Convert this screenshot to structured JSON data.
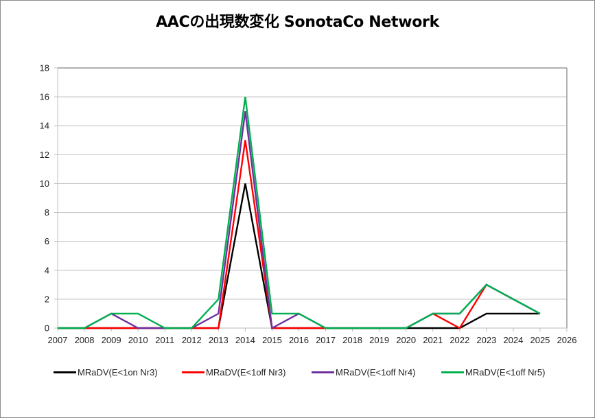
{
  "title": "AACの出現数変化 SonotaCo Network",
  "chart_data": {
    "type": "line",
    "title": "AACの出現数変化 SonotaCo Network",
    "xlabel": "",
    "ylabel": "",
    "x": [
      2007,
      2008,
      2009,
      2010,
      2011,
      2012,
      2013,
      2014,
      2015,
      2016,
      2017,
      2018,
      2019,
      2020,
      2021,
      2022,
      2023,
      2024,
      2025
    ],
    "x_ticks": [
      "2007",
      "2008",
      "2009",
      "2010",
      "2011",
      "2012",
      "2013",
      "2014",
      "2015",
      "2016",
      "2017",
      "2018",
      "2019",
      "2020",
      "2021",
      "2022",
      "2023",
      "2024",
      "2025",
      "2026"
    ],
    "y_ticks": [
      "0",
      "2",
      "4",
      "6",
      "8",
      "10",
      "12",
      "14",
      "16",
      "18"
    ],
    "xlim": [
      2007,
      2026
    ],
    "ylim": [
      0,
      18
    ],
    "grid": "horizontal",
    "legend_position": "bottom",
    "series": [
      {
        "name": "MRaDV(E<1on Nr3)",
        "color": "#000000",
        "values": [
          0,
          0,
          0,
          0,
          0,
          0,
          0,
          10,
          0,
          0,
          0,
          0,
          0,
          0,
          0,
          0,
          1,
          1,
          1
        ]
      },
      {
        "name": "MRaDV(E<1off Nr3)",
        "color": "#ff0000",
        "values": [
          0,
          0,
          0,
          0,
          0,
          0,
          0,
          13,
          0,
          0,
          0,
          0,
          0,
          0,
          1,
          0,
          3,
          2,
          1
        ]
      },
      {
        "name": "MRaDV(E<1off Nr4)",
        "color": "#7030a0",
        "values": [
          0,
          0,
          1,
          0,
          0,
          0,
          1,
          15,
          0,
          1,
          0,
          0,
          0,
          0,
          1,
          1,
          3,
          2,
          1
        ]
      },
      {
        "name": "MRaDV(E<1off Nr5)",
        "color": "#00b050",
        "values": [
          0,
          0,
          1,
          1,
          0,
          0,
          2,
          16,
          1,
          1,
          0,
          0,
          0,
          0,
          1,
          1,
          3,
          2,
          1
        ]
      }
    ]
  },
  "legend": [
    {
      "label": "MRaDV(E<1on Nr3)",
      "color": "#000000"
    },
    {
      "label": "MRaDV(E<1off Nr3)",
      "color": "#ff0000"
    },
    {
      "label": "MRaDV(E<1off Nr4)",
      "color": "#7030a0"
    },
    {
      "label": "MRaDV(E<1off Nr5)",
      "color": "#00b050"
    }
  ]
}
